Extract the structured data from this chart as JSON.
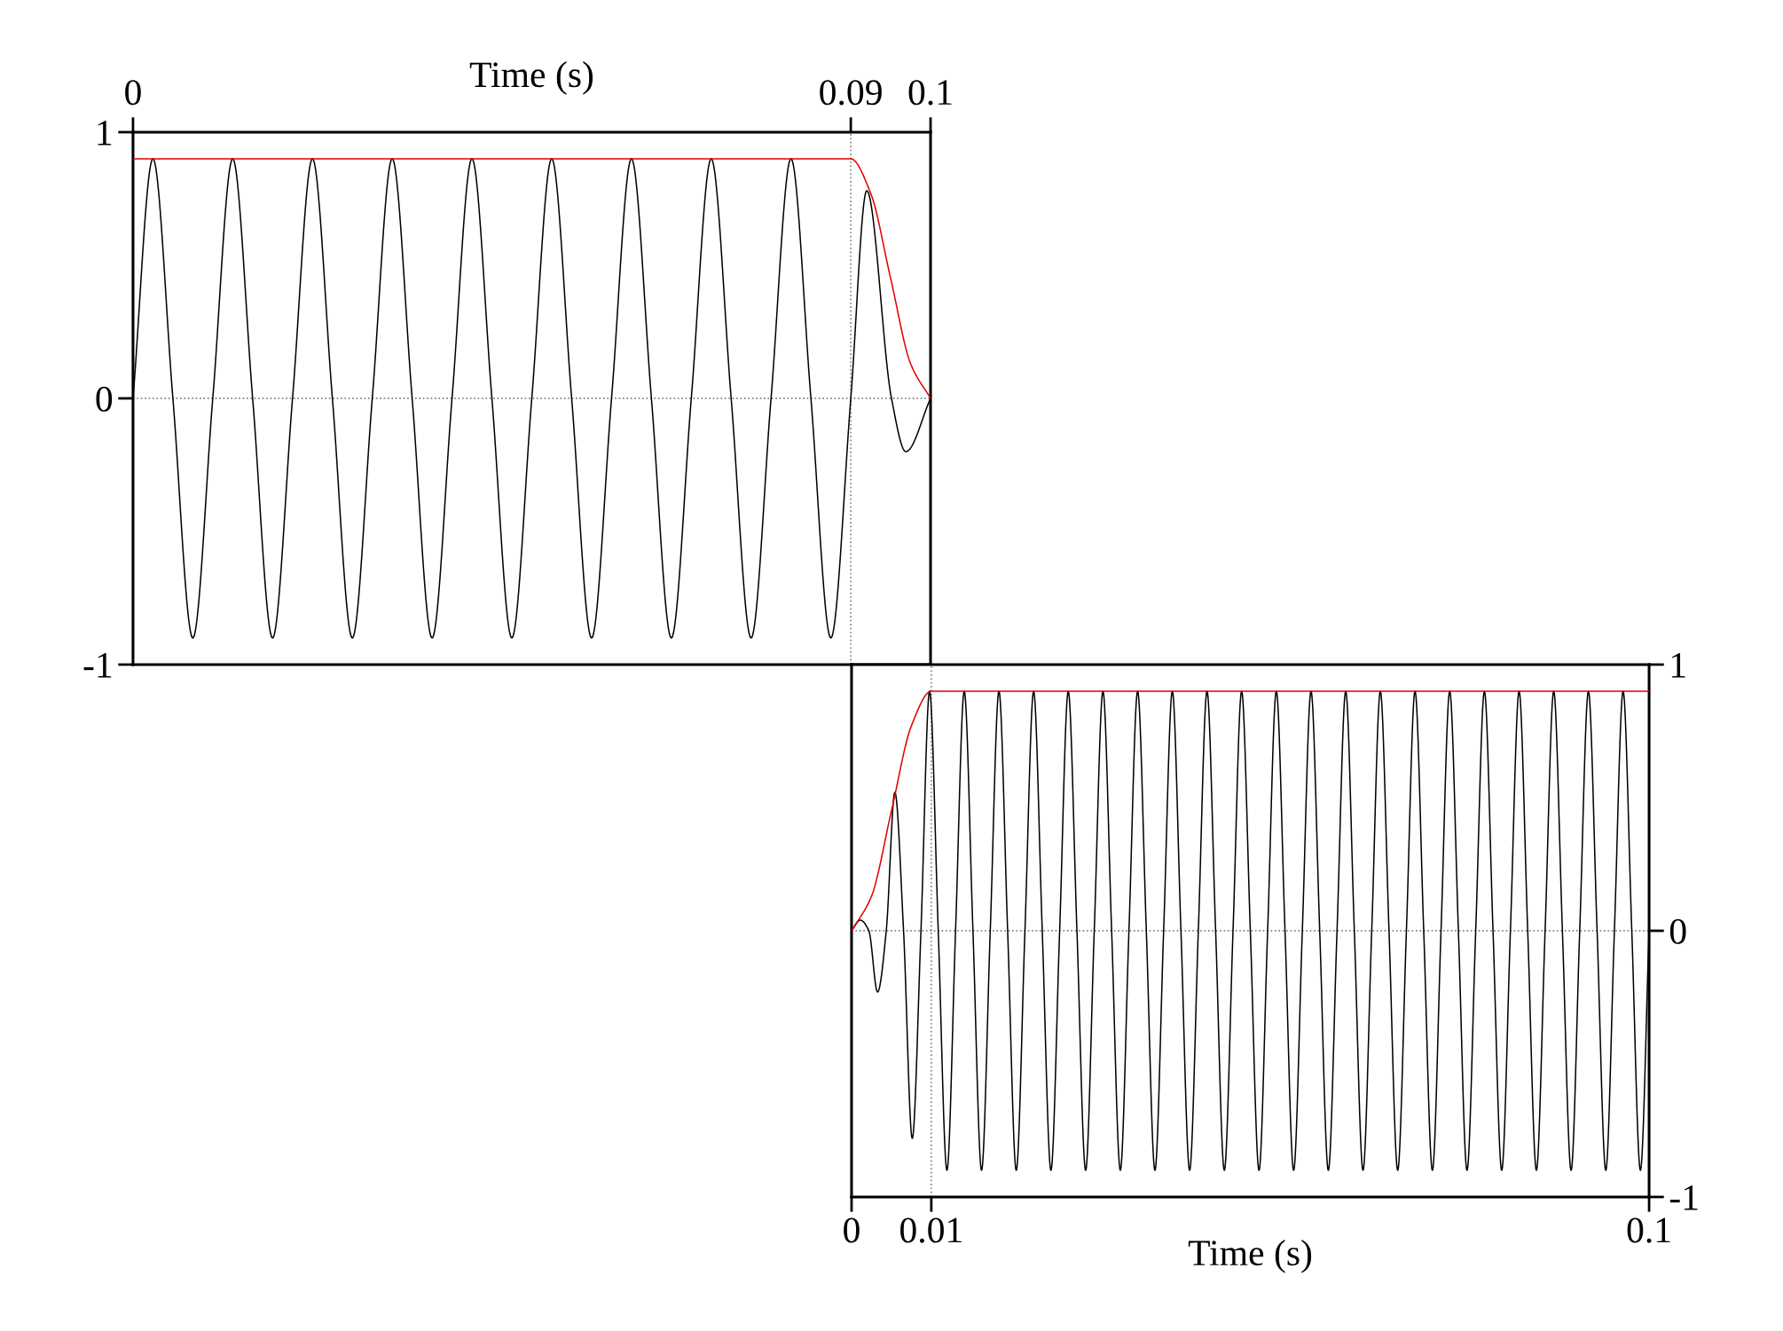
{
  "chart_data": [
    {
      "type": "line",
      "xlabel": "Time (s)",
      "xlim": [
        0,
        0.1
      ],
      "ylim": [
        -1,
        1
      ],
      "xticks": [
        0,
        0.09,
        0.1
      ],
      "yticks": [
        -1,
        0,
        1
      ],
      "ref_lines": [
        {
          "axis": "y",
          "value": 0,
          "color": "#808080",
          "line_style": "dotted"
        },
        {
          "axis": "x",
          "value": 0.09,
          "color": "#808080",
          "line_style": "dotted"
        }
      ],
      "series": [
        {
          "color": "#000000",
          "x": [
            0,
            0.0025,
            0.005,
            0.0075,
            0.01,
            0.0125,
            0.015,
            0.0175,
            0.02,
            0.0225,
            0.025,
            0.0275,
            0.03,
            0.0325,
            0.035,
            0.0375,
            0.04,
            0.0425,
            0.045,
            0.0475,
            0.05,
            0.0525,
            0.055,
            0.0575,
            0.06,
            0.0625,
            0.065,
            0.0675,
            0.07,
            0.0725,
            0.075,
            0.0775,
            0.08,
            0.0825,
            0.085,
            0.0875,
            0.09,
            0.092,
            0.0951,
            0.0969,
            0.1
          ],
          "values": [
            0,
            0.9,
            0,
            -0.9,
            0,
            0.9,
            0,
            -0.9,
            0,
            0.9,
            0,
            -0.9,
            0,
            0.9,
            0,
            -0.9,
            0,
            0.9,
            0,
            -0.9,
            0,
            0.9,
            0,
            -0.9,
            0,
            0.9,
            0,
            -0.9,
            0,
            0.9,
            0,
            -0.9,
            0,
            0.9,
            0,
            -0.9,
            0,
            0.78,
            0,
            -0.2,
            0
          ]
        },
        {
          "color": "#e00000",
          "x": [
            0,
            0.09,
            0.0925,
            0.095,
            0.0975,
            0.1
          ],
          "values": [
            0.9,
            0.9,
            0.77,
            0.45,
            0.13,
            0
          ]
        }
      ]
    },
    {
      "type": "line",
      "xlabel": "Time (s)",
      "xlim": [
        0,
        0.1
      ],
      "ylim": [
        -1,
        1
      ],
      "xticks": [
        0,
        0.01,
        0.1
      ],
      "yticks": [
        -1,
        0,
        1
      ],
      "ref_lines": [
        {
          "axis": "y",
          "value": 0,
          "color": "#808080",
          "line_style": "dotted"
        },
        {
          "axis": "x",
          "value": 0.01,
          "color": "#808080",
          "line_style": "dotted"
        }
      ],
      "series": [
        {
          "color": "#000000",
          "x": [
            0,
            0.00109,
            0.00217,
            0.00326,
            0.00435,
            0.00543,
            0.00652,
            0.00761,
            0.0087,
            0.00978,
            0.01087,
            0.01196,
            0.01304,
            0.01413,
            0.01522,
            0.0163,
            0.01739,
            0.01848,
            0.01957,
            0.02065,
            0.02174,
            0.02283,
            0.02391,
            0.025,
            0.02609,
            0.02717,
            0.02826,
            0.02935,
            0.03043,
            0.03152,
            0.03261,
            0.0337,
            0.03478,
            0.03587,
            0.03696,
            0.03804,
            0.03913,
            0.04022,
            0.0413,
            0.04239,
            0.04348,
            0.04457,
            0.04565,
            0.04674,
            0.04783,
            0.04891,
            0.05,
            0.05109,
            0.05217,
            0.05326,
            0.05435,
            0.05543,
            0.05652,
            0.05761,
            0.0587,
            0.05978,
            0.06087,
            0.06196,
            0.06304,
            0.06413,
            0.06522,
            0.0663,
            0.06739,
            0.06848,
            0.06957,
            0.07065,
            0.07174,
            0.07283,
            0.07391,
            0.075,
            0.07609,
            0.07717,
            0.07826,
            0.07935,
            0.08043,
            0.08152,
            0.08261,
            0.0837,
            0.08478,
            0.08587,
            0.08696,
            0.08804,
            0.08913,
            0.09022,
            0.0913,
            0.09239,
            0.09348,
            0.09457,
            0.09565,
            0.09674,
            0.09783,
            0.09891,
            0.1
          ],
          "values": [
            0,
            0.04,
            0,
            -0.23,
            0,
            0.52,
            0,
            -0.78,
            0,
            0.9,
            0,
            -0.9,
            0,
            0.9,
            0,
            -0.9,
            0,
            0.9,
            0,
            -0.9,
            0,
            0.9,
            0,
            -0.9,
            0,
            0.9,
            0,
            -0.9,
            0,
            0.9,
            0,
            -0.9,
            0,
            0.9,
            0,
            -0.9,
            0,
            0.9,
            0,
            -0.9,
            0,
            0.9,
            0,
            -0.9,
            0,
            0.9,
            0,
            -0.9,
            0,
            0.9,
            0,
            -0.9,
            0,
            0.9,
            0,
            -0.9,
            0,
            0.9,
            0,
            -0.9,
            0,
            0.9,
            0,
            -0.9,
            0,
            0.9,
            0,
            -0.9,
            0,
            0.9,
            0,
            -0.9,
            0,
            0.9,
            0,
            -0.9,
            0,
            0.9,
            0,
            -0.9,
            0,
            0.9,
            0,
            -0.9,
            0,
            0.9,
            0,
            -0.9,
            0,
            0.9,
            0,
            -0.9,
            0
          ]
        },
        {
          "color": "#e00000",
          "x": [
            0,
            0.0025,
            0.005,
            0.0075,
            0.01,
            0.1
          ],
          "values": [
            0,
            0.13,
            0.45,
            0.77,
            0.9,
            0.9
          ]
        }
      ]
    }
  ]
}
